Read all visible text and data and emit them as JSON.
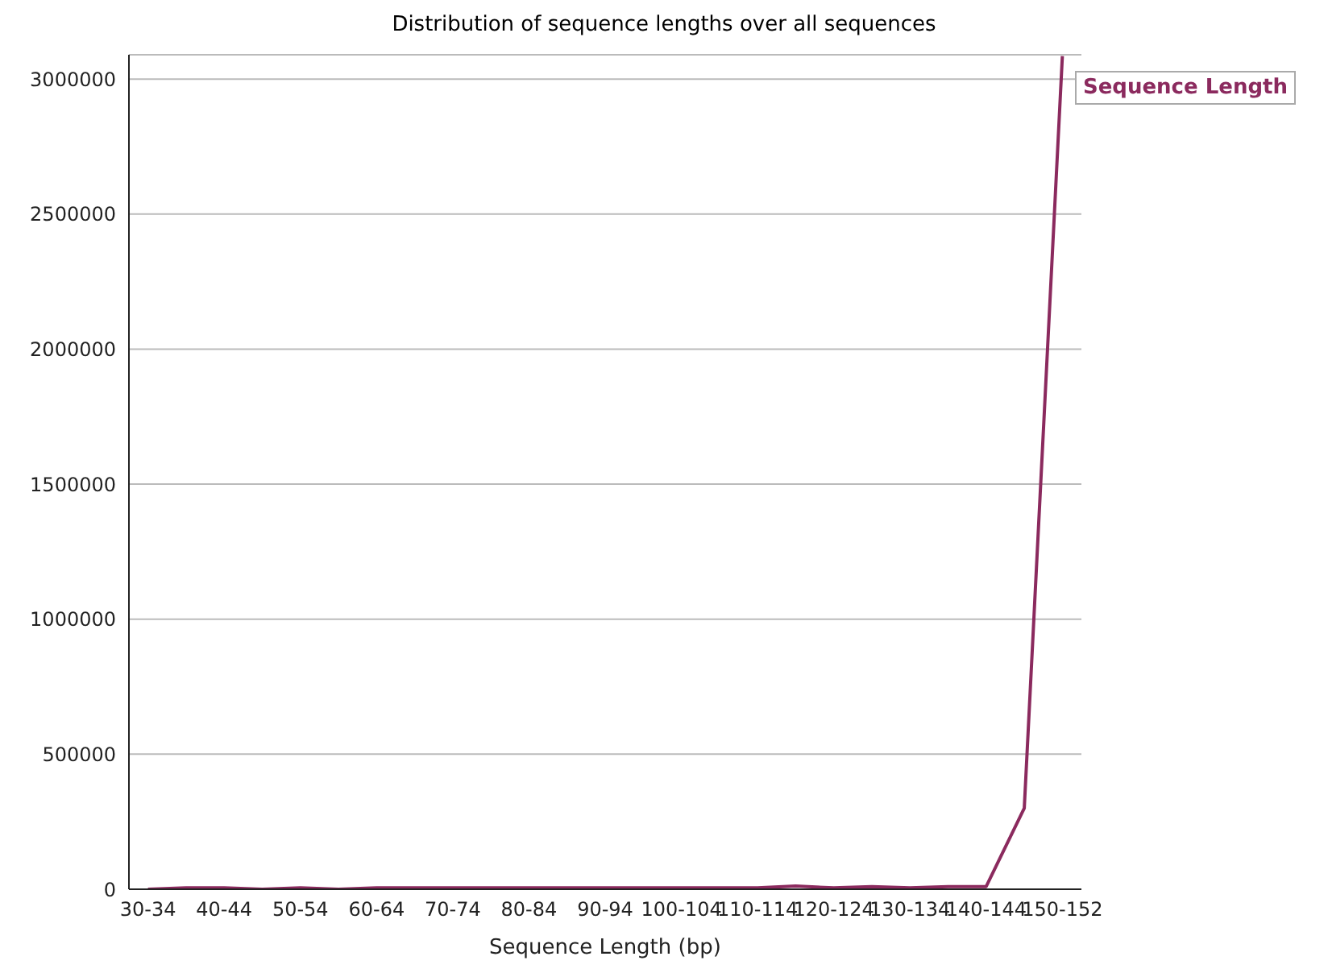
{
  "chart_data": {
    "type": "line",
    "title": "Distribution of sequence lengths over all sequences",
    "xlabel": "Sequence Length (bp)",
    "categories": [
      "30-34",
      null,
      "40-44",
      null,
      "50-54",
      null,
      "60-64",
      null,
      "70-74",
      null,
      "80-84",
      null,
      "90-94",
      null,
      "100-104",
      null,
      "110-114",
      null,
      "120-124",
      null,
      "130-134",
      null,
      "140-144",
      null,
      "150-152"
    ],
    "series": [
      {
        "name": "Sequence Length",
        "color": "#8b2a5e",
        "values": [
          0,
          5000,
          5000,
          0,
          5000,
          0,
          5000,
          5000,
          5000,
          5000,
          5000,
          5000,
          5000,
          5000,
          5000,
          5000,
          5000,
          12000,
          5000,
          10000,
          5000,
          10000,
          10000,
          300000,
          3085000
        ]
      }
    ],
    "ylim": [
      0,
      3090000
    ],
    "yticks": [
      0,
      500000,
      1000000,
      1500000,
      2000000,
      2500000,
      3000000
    ],
    "grid": "y",
    "legend": "top right",
    "marker": "none",
    "line_style": "solid"
  }
}
